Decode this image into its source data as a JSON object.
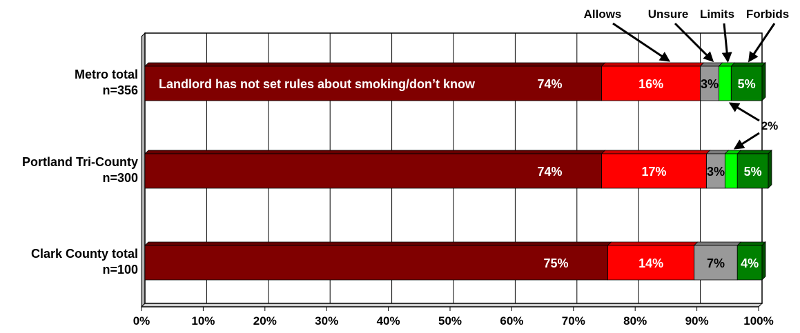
{
  "chart_data": {
    "type": "bar",
    "orientation": "horizontal",
    "stacked": true,
    "categories": [
      {
        "name": "Metro total",
        "n": "n=356"
      },
      {
        "name": "Portland Tri-County",
        "n": "n=300"
      },
      {
        "name": "Clark County total",
        "n": "n=100"
      }
    ],
    "series": [
      {
        "name": "",
        "values": [
          74,
          74,
          75
        ],
        "labels": [
          "74%",
          "74%",
          "75%"
        ],
        "color": "#800000",
        "label_color": "#ffffff"
      },
      {
        "name": "Allows",
        "values": [
          16,
          17,
          14
        ],
        "labels": [
          "16%",
          "17%",
          "14%"
        ],
        "color": "#ff0000",
        "label_color": "#ffffff"
      },
      {
        "name": "Unsure",
        "values": [
          3,
          3,
          7
        ],
        "labels": [
          "3%",
          "3%",
          "7%"
        ],
        "color": "#999999",
        "label_color": "#000000"
      },
      {
        "name": "Limits",
        "values": [
          2,
          2,
          0
        ],
        "labels": [
          "",
          "",
          ""
        ],
        "color": "#00ff00",
        "label_color": "#000000"
      },
      {
        "name": "Forbids",
        "values": [
          5,
          5,
          4
        ],
        "labels": [
          "5%",
          "5%",
          "4%"
        ],
        "color": "#008000",
        "label_color": "#ffffff"
      }
    ],
    "inline_label": "Landlord has not set rules about smoking/don’t know",
    "limits_callout": "2%",
    "x_ticks": [
      "0%",
      "10%",
      "20%",
      "30%",
      "40%",
      "50%",
      "60%",
      "70%",
      "80%",
      "90%",
      "100%"
    ],
    "xlim": [
      0,
      100
    ],
    "grid": true,
    "title": "",
    "xlabel": "",
    "ylabel": ""
  }
}
